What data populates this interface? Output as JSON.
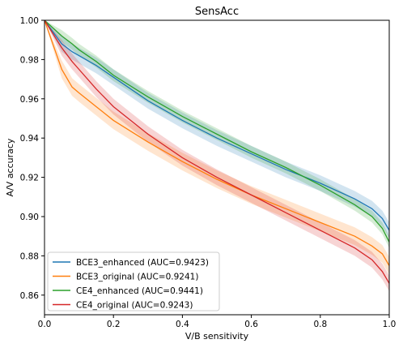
{
  "chart_data": {
    "type": "line",
    "title": "SensAcc",
    "xlabel": "V/B sensitivity",
    "ylabel": "A/V accuracy",
    "xlim": [
      0.0,
      1.0
    ],
    "ylim": [
      0.85,
      1.0
    ],
    "xticks": [
      "0.0",
      "0.2",
      "0.4",
      "0.6",
      "0.8",
      "1.0"
    ],
    "yticks": [
      "0.86",
      "0.88",
      "0.90",
      "0.92",
      "0.94",
      "0.96",
      "0.98",
      "1.00"
    ],
    "grid": false,
    "legend_position": "lower-left",
    "x": [
      0.0,
      0.05,
      0.08,
      0.1,
      0.15,
      0.2,
      0.3,
      0.4,
      0.5,
      0.6,
      0.7,
      0.8,
      0.9,
      0.95,
      0.98,
      1.0
    ],
    "series": [
      {
        "name": "BCE3_enhanced (AUC=0.9423)",
        "color": "#1f77b4",
        "values": [
          1.0,
          0.988,
          0.984,
          0.982,
          0.977,
          0.971,
          0.959,
          0.949,
          0.94,
          0.932,
          0.924,
          0.917,
          0.909,
          0.904,
          0.899,
          0.893
        ],
        "band_half_width": 0.004
      },
      {
        "name": "BCE3_original (AUC=0.9241)",
        "color": "#ff7f0e",
        "values": [
          1.0,
          0.975,
          0.966,
          0.963,
          0.956,
          0.949,
          0.938,
          0.928,
          0.919,
          0.911,
          0.904,
          0.897,
          0.89,
          0.885,
          0.881,
          0.875
        ],
        "band_half_width": 0.0045
      },
      {
        "name": "CE4_enhanced (AUC=0.9441)",
        "color": "#2ca02c",
        "values": [
          1.0,
          0.992,
          0.988,
          0.985,
          0.979,
          0.972,
          0.961,
          0.951,
          0.942,
          0.933,
          0.925,
          0.916,
          0.906,
          0.9,
          0.894,
          0.887
        ],
        "band_half_width": 0.003
      },
      {
        "name": "CE4_original (AUC=0.9243)",
        "color": "#d62728",
        "values": [
          1.0,
          0.986,
          0.979,
          0.975,
          0.965,
          0.956,
          0.942,
          0.93,
          0.92,
          0.911,
          0.902,
          0.893,
          0.884,
          0.878,
          0.872,
          0.866
        ],
        "band_half_width": 0.004
      }
    ]
  }
}
